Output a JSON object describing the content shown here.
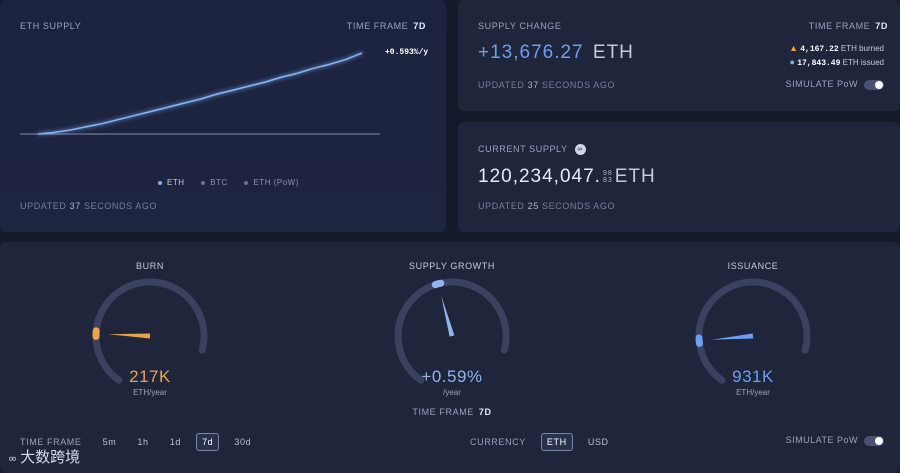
{
  "eth_supply": {
    "title": "ETH SUPPLY",
    "timeframe_label": "TIME FRAME",
    "timeframe_value": "7d",
    "growth_label": "+0.593%/y",
    "legend": [
      {
        "label": "ETH",
        "color": "#7fb3f5"
      },
      {
        "label": "BTC",
        "color": "#6a7290"
      },
      {
        "label": "ETH (PoW)",
        "color": "#6a7290"
      }
    ],
    "updated_prefix": "UPDATED",
    "updated_num": "37",
    "updated_suffix": "SECONDS AGO"
  },
  "chart_data": {
    "type": "line",
    "series": [
      {
        "name": "ETH",
        "values": [
          0,
          2,
          5,
          9,
          13,
          18,
          23,
          28,
          33,
          38,
          43,
          49,
          54,
          59,
          64,
          70,
          75,
          81,
          86,
          92,
          100
        ]
      }
    ]
  },
  "supply_change": {
    "title": "SUPPLY CHANGE",
    "timeframe_label": "TIME FRAME",
    "timeframe_value": "7d",
    "value": "+13,676.27",
    "unit": "ETH",
    "burned_value": "4,167.22",
    "burned_label": "ETH burned",
    "issued_value": "17,843.49",
    "issued_label": "ETH issued",
    "updated_prefix": "UPDATED",
    "updated_num": "37",
    "updated_suffix": "SECONDS AGO",
    "simulate_label": "SIMULATE PoW"
  },
  "current_supply": {
    "title": "CURRENT SUPPLY",
    "value_main": "120,234,047.",
    "value_frac_top": "98",
    "value_frac_bottom": "83",
    "unit": "ETH",
    "updated_prefix": "UPDATED",
    "updated_num": "25",
    "updated_suffix": "SECONDS AGO"
  },
  "gauges": {
    "burn": {
      "title": "BURN",
      "value": "217K",
      "unit": "ETH/year",
      "level": 0.23,
      "color": "#e8a44a"
    },
    "growth": {
      "title": "SUPPLY GROWTH",
      "value": "+0.59%",
      "unit": "/year",
      "level": 0.52,
      "color": "#8fb4ee"
    },
    "issuance": {
      "title": "ISSUANCE",
      "value": "931K",
      "unit": "ETH/year",
      "level": 0.2,
      "color": "#6d9ef0"
    }
  },
  "bottom": {
    "timeframe_label": "TIME FRAME",
    "timeframe_center_label": "TIME FRAME",
    "timeframe_center_value": "7d",
    "timeframes": [
      "5m",
      "1h",
      "1d",
      "7d",
      "30d"
    ],
    "timeframe_selected": "7d",
    "currency_label": "CURRENCY",
    "currencies": [
      "ETH",
      "USD"
    ],
    "currency_selected": "ETH",
    "simulate_label": "SIMULATE PoW"
  },
  "watermark": "大数跨境"
}
